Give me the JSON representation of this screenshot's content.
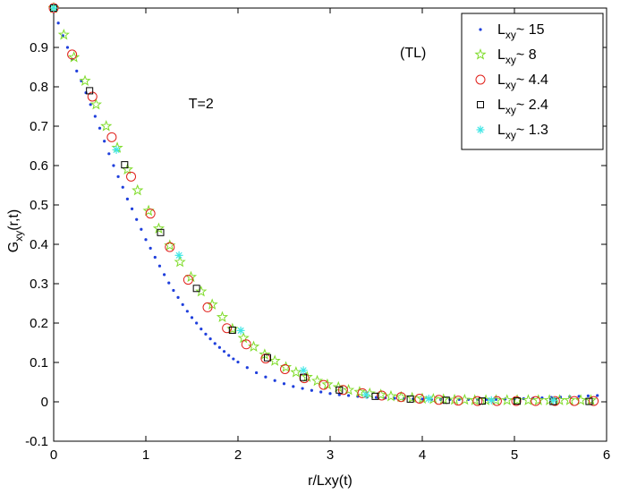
{
  "chart_data": {
    "type": "scatter",
    "title": "",
    "xlabel": "r/Lxy(t)",
    "ylabel_main": "G",
    "ylabel_sub": "xy",
    "ylabel_tail": "(r,t)",
    "xlim": [
      0,
      6
    ],
    "ylim": [
      -0.1,
      1.0
    ],
    "xticks": [
      "0",
      "1",
      "2",
      "3",
      "4",
      "5",
      "6"
    ],
    "yticks": [
      "-0.1",
      "0",
      "0.1",
      "0.2",
      "0.3",
      "0.4",
      "0.5",
      "0.6",
      "0.7",
      "0.8",
      "0.9"
    ],
    "grid": false,
    "legend_position": "top-right",
    "annotations": [
      {
        "text": "(TL)",
        "x": 3.9,
        "y": 0.875
      },
      {
        "text": "T=2",
        "x": 1.6,
        "y": 0.745
      }
    ],
    "series": [
      {
        "legend_main": "L",
        "legend_sub": "xy",
        "legend_tail": "~ 15",
        "marker": "dot",
        "color": "#1f3fdc",
        "x": [
          0.0,
          0.05,
          0.1,
          0.15,
          0.2,
          0.25,
          0.3,
          0.35,
          0.4,
          0.45,
          0.5,
          0.55,
          0.6,
          0.65,
          0.7,
          0.75,
          0.8,
          0.85,
          0.9,
          0.95,
          1.0,
          1.05,
          1.1,
          1.15,
          1.2,
          1.25,
          1.3,
          1.35,
          1.4,
          1.45,
          1.5,
          1.55,
          1.6,
          1.65,
          1.7,
          1.75,
          1.8,
          1.85,
          1.9,
          1.95,
          2.0,
          2.1,
          2.2,
          2.3,
          2.4,
          2.5,
          2.6,
          2.7,
          2.8,
          2.9,
          3.0,
          3.1,
          3.2,
          3.3,
          3.4,
          3.5,
          3.6,
          3.7,
          3.8,
          3.9,
          4.0,
          4.1,
          4.2,
          4.3,
          4.4,
          4.5,
          4.6,
          4.7,
          4.8,
          4.9,
          5.0,
          5.1,
          5.2,
          5.3,
          5.4,
          5.5,
          5.6,
          5.7,
          5.8,
          5.9
        ],
        "y": [
          1.0,
          0.962,
          0.93,
          0.9,
          0.87,
          0.84,
          0.815,
          0.785,
          0.755,
          0.725,
          0.695,
          0.662,
          0.63,
          0.6,
          0.572,
          0.545,
          0.515,
          0.49,
          0.463,
          0.438,
          0.412,
          0.39,
          0.367,
          0.345,
          0.323,
          0.302,
          0.283,
          0.265,
          0.247,
          0.23,
          0.214,
          0.2,
          0.185,
          0.172,
          0.16,
          0.148,
          0.138,
          0.128,
          0.118,
          0.109,
          0.101,
          0.087,
          0.074,
          0.063,
          0.054,
          0.046,
          0.039,
          0.034,
          0.029,
          0.025,
          0.021,
          0.018,
          0.016,
          0.014,
          0.012,
          0.011,
          0.01,
          0.009,
          0.008,
          0.007,
          0.007,
          0.006,
          0.006,
          0.006,
          0.006,
          0.006,
          0.006,
          0.006,
          0.006,
          0.007,
          0.007,
          0.008,
          0.009,
          0.01,
          0.011,
          0.012,
          0.013,
          0.014,
          0.015,
          0.016
        ]
      },
      {
        "legend_main": "L",
        "legend_sub": "xy",
        "legend_tail": "~ 8",
        "marker": "star",
        "color": "#7fdc2a",
        "x": [
          0.0,
          0.11,
          0.22,
          0.34,
          0.46,
          0.57,
          0.69,
          0.8,
          0.91,
          1.03,
          1.14,
          1.26,
          1.37,
          1.49,
          1.6,
          1.72,
          1.83,
          1.94,
          2.06,
          2.17,
          2.29,
          2.4,
          2.52,
          2.63,
          2.75,
          2.86,
          2.97,
          3.09,
          3.2,
          3.32,
          3.43,
          3.55,
          3.66,
          3.77,
          3.89,
          4.0,
          4.12,
          4.23,
          4.35,
          4.46,
          4.57,
          4.69,
          4.8,
          4.92,
          5.03,
          5.15,
          5.26,
          5.38,
          5.49,
          5.6,
          5.72,
          5.83
        ],
        "y": [
          1.0,
          0.932,
          0.875,
          0.815,
          0.755,
          0.7,
          0.645,
          0.59,
          0.537,
          0.485,
          0.44,
          0.397,
          0.355,
          0.317,
          0.28,
          0.247,
          0.215,
          0.185,
          0.162,
          0.14,
          0.12,
          0.104,
          0.088,
          0.075,
          0.063,
          0.053,
          0.044,
          0.037,
          0.03,
          0.025,
          0.021,
          0.018,
          0.014,
          0.012,
          0.01,
          0.008,
          0.007,
          0.006,
          0.005,
          0.005,
          0.004,
          0.004,
          0.004,
          0.004,
          0.004,
          0.004,
          0.004,
          0.004,
          0.004,
          0.004,
          0.004,
          0.004
        ]
      },
      {
        "legend_main": "L",
        "legend_sub": "xy",
        "legend_tail": "~ 4.4",
        "marker": "circle",
        "color": "#e0201a",
        "x": [
          0.0,
          0.2,
          0.42,
          0.63,
          0.84,
          1.05,
          1.26,
          1.46,
          1.67,
          1.88,
          2.09,
          2.3,
          2.51,
          2.72,
          2.93,
          3.14,
          3.35,
          3.56,
          3.77,
          3.97,
          4.18,
          4.39,
          4.6,
          4.81,
          5.02,
          5.23,
          5.44,
          5.65,
          5.86
        ],
        "y": [
          1.0,
          0.882,
          0.775,
          0.672,
          0.572,
          0.478,
          0.393,
          0.31,
          0.24,
          0.187,
          0.146,
          0.11,
          0.083,
          0.06,
          0.043,
          0.03,
          0.022,
          0.016,
          0.012,
          0.008,
          0.005,
          0.003,
          0.002,
          0.002,
          0.002,
          0.002,
          0.002,
          0.002,
          0.002
        ]
      },
      {
        "legend_main": "L",
        "legend_sub": "xy",
        "legend_tail": "~ 2.4",
        "marker": "square",
        "color": "#000000",
        "x": [
          0.0,
          0.39,
          0.77,
          1.16,
          1.55,
          1.94,
          2.32,
          2.71,
          3.1,
          3.49,
          3.87,
          4.26,
          4.65,
          5.03,
          5.42,
          5.81
        ],
        "y": [
          1.0,
          0.79,
          0.602,
          0.43,
          0.288,
          0.182,
          0.112,
          0.062,
          0.03,
          0.014,
          0.007,
          0.004,
          0.002,
          0.002,
          0.001,
          0.001
        ]
      },
      {
        "legend_main": "L",
        "legend_sub": "xy",
        "legend_tail": "~ 1.3",
        "marker": "asterisk",
        "color": "#3fe6e6",
        "x": [
          0.0,
          0.68,
          1.36,
          2.03,
          2.71,
          3.39,
          4.07,
          4.75,
          5.42
        ],
        "y": [
          1.0,
          0.64,
          0.372,
          0.181,
          0.08,
          0.018,
          0.008,
          0.004,
          0.004
        ]
      }
    ]
  }
}
